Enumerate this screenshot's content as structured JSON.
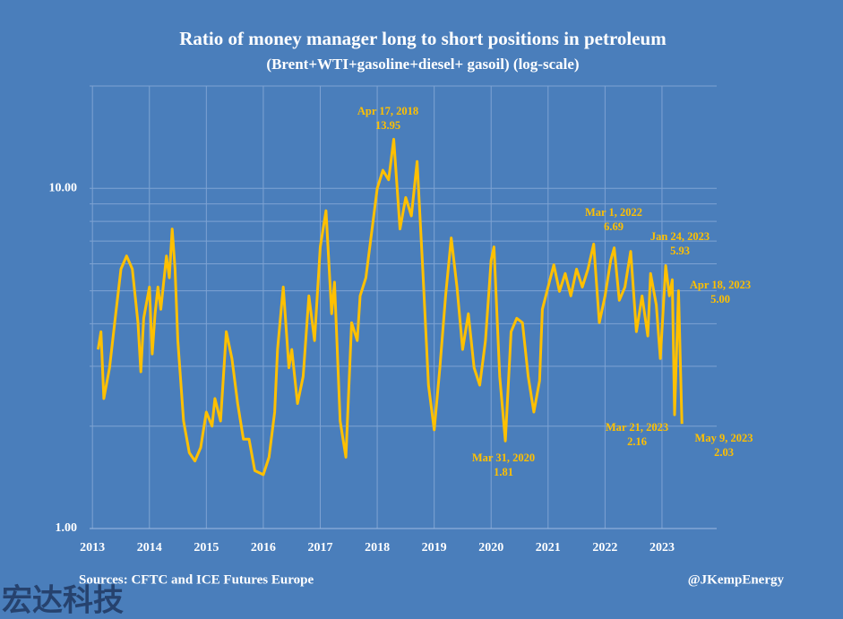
{
  "chart_data": {
    "type": "line",
    "title": "Ratio of money manager long to short positions in petroleum",
    "subtitle": "(Brent+WTI+gasoline+diesel+ gasoil) (log-scale)",
    "x": [
      2013.1,
      2013.15,
      2013.2,
      2013.3,
      2013.4,
      2013.5,
      2013.6,
      2013.7,
      2013.8,
      2013.85,
      2013.9,
      2014.0,
      2014.05,
      2014.1,
      2014.15,
      2014.2,
      2014.3,
      2014.35,
      2014.4,
      2014.45,
      2014.5,
      2014.6,
      2014.7,
      2014.8,
      2014.9,
      2015.0,
      2015.1,
      2015.15,
      2015.25,
      2015.35,
      2015.45,
      2015.55,
      2015.65,
      2015.75,
      2015.85,
      2016.0,
      2016.1,
      2016.2,
      2016.25,
      2016.35,
      2016.45,
      2016.5,
      2016.6,
      2016.7,
      2016.8,
      2016.9,
      2017.0,
      2017.1,
      2017.2,
      2017.25,
      2017.35,
      2017.45,
      2017.55,
      2017.65,
      2017.7,
      2017.8,
      2017.9,
      2018.0,
      2018.1,
      2018.2,
      2018.29,
      2018.4,
      2018.5,
      2018.6,
      2018.7,
      2018.8,
      2018.9,
      2019.0,
      2019.1,
      2019.2,
      2019.3,
      2019.4,
      2019.5,
      2019.6,
      2019.7,
      2019.8,
      2019.9,
      2020.0,
      2020.05,
      2020.15,
      2020.25,
      2020.35,
      2020.45,
      2020.55,
      2020.65,
      2020.75,
      2020.85,
      2020.9,
      2021.0,
      2021.1,
      2021.2,
      2021.3,
      2021.4,
      2021.5,
      2021.6,
      2021.7,
      2021.8,
      2021.9,
      2022.0,
      2022.1,
      2022.16,
      2022.25,
      2022.35,
      2022.45,
      2022.55,
      2022.65,
      2022.75,
      2022.8,
      2022.9,
      2022.97,
      2023.065,
      2023.13,
      2023.18,
      2023.22,
      2023.29,
      2023.35
    ],
    "series": [
      {
        "color": "#ffc000",
        "values": [
          3.36,
          3.79,
          2.41,
          2.97,
          4.15,
          5.79,
          6.33,
          5.79,
          4.03,
          2.89,
          4.15,
          5.13,
          3.26,
          4.28,
          5.13,
          4.41,
          6.33,
          5.46,
          7.6,
          5.79,
          3.57,
          2.07,
          1.67,
          1.58,
          1.73,
          2.2,
          2.0,
          2.41,
          2.07,
          3.79,
          3.16,
          2.33,
          1.83,
          1.83,
          1.48,
          1.44,
          1.62,
          2.2,
          3.36,
          5.13,
          2.97,
          3.36,
          2.33,
          2.8,
          4.83,
          3.57,
          6.73,
          8.6,
          4.28,
          5.3,
          2.07,
          1.62,
          4.03,
          3.57,
          4.83,
          5.46,
          7.37,
          10.0,
          11.3,
          10.6,
          13.95,
          7.6,
          9.4,
          8.3,
          12.0,
          5.79,
          2.64,
          1.95,
          2.97,
          4.83,
          7.15,
          5.13,
          3.36,
          4.28,
          2.97,
          2.64,
          3.57,
          6.14,
          6.73,
          2.8,
          1.81,
          3.79,
          4.15,
          4.03,
          2.8,
          2.2,
          2.72,
          4.41,
          5.13,
          5.96,
          4.98,
          5.62,
          4.83,
          5.79,
          5.13,
          5.79,
          6.86,
          4.03,
          4.83,
          6.14,
          6.69,
          4.69,
          5.13,
          6.53,
          3.79,
          4.83,
          3.68,
          5.62,
          4.54,
          3.16,
          5.93,
          4.83,
          5.39,
          2.16,
          5.0,
          2.03
        ]
      }
    ],
    "xlim": [
      2012.95,
      2023.96
    ],
    "xticks": [
      2013,
      2014,
      2015,
      2016,
      2017,
      2018,
      2019,
      2020,
      2021,
      2022,
      2023
    ],
    "ylim": [
      1,
      20
    ],
    "yticks": [
      {
        "value": 1,
        "label": "1.00"
      },
      {
        "value": 10,
        "label": "10.00"
      }
    ],
    "minor_yticks": [
      2,
      3,
      4,
      5,
      6,
      7,
      8,
      9
    ],
    "log_scale": true,
    "grid": true,
    "annotations": [
      {
        "text": "Apr 17, 2018",
        "value": 13.95
      },
      {
        "text": "Mar 31, 2020",
        "value": 1.81
      },
      {
        "text": "Mar 1, 2022",
        "value": 6.69
      },
      {
        "text": "Jan 24, 2023",
        "value": 5.93
      },
      {
        "text": "Mar 21, 2023",
        "value": 2.16
      },
      {
        "text": "Apr 18, 2023",
        "value": 5.0,
        "value_label": "5.00"
      },
      {
        "text": "May 9, 2023",
        "value": 2.03
      }
    ],
    "source": "Sources: CFTC and ICE Futures Europe",
    "credit": "@JKempEnergy",
    "watermark": "宏达科技"
  }
}
